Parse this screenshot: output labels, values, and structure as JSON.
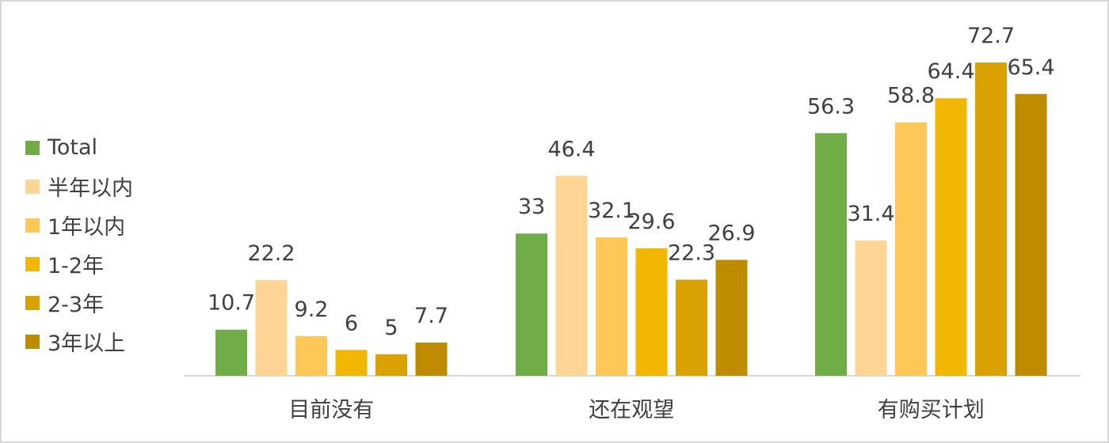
{
  "chart_data": {
    "type": "bar",
    "categories": [
      "目前没有",
      "还在观望",
      "有购买计划"
    ],
    "series": [
      {
        "name": "Total",
        "color": "#70ad47",
        "values": [
          10.7,
          33,
          56.3
        ]
      },
      {
        "name": "半年以内",
        "color": "#ffd596",
        "values": [
          22.2,
          46.4,
          31.4
        ]
      },
      {
        "name": "1年以内",
        "color": "#ffc658",
        "values": [
          9.2,
          32.1,
          58.8
        ]
      },
      {
        "name": "1-2年",
        "color": "#f2b705",
        "values": [
          6,
          29.6,
          64.4
        ]
      },
      {
        "name": "2-3年",
        "color": "#d9a101",
        "values": [
          5,
          22.3,
          72.7
        ]
      },
      {
        "name": "3年以上",
        "color": "#bf8c00",
        "values": [
          7.7,
          26.9,
          65.4
        ]
      }
    ],
    "value_labels": [
      [
        "10.7",
        "33",
        "56.3"
      ],
      [
        "22.2",
        "46.4",
        "31.4"
      ],
      [
        "9.2",
        "32.1",
        "58.8"
      ],
      [
        "6",
        "29.6",
        "64.4"
      ],
      [
        "5",
        "22.3",
        "72.7"
      ],
      [
        "7.7",
        "26.9",
        "65.4"
      ]
    ],
    "ylim": [
      0,
      72.7
    ],
    "grid": false,
    "legend": "left",
    "axis_color": "#d9d9d9",
    "title": "",
    "xlabel": "",
    "ylabel": ""
  }
}
